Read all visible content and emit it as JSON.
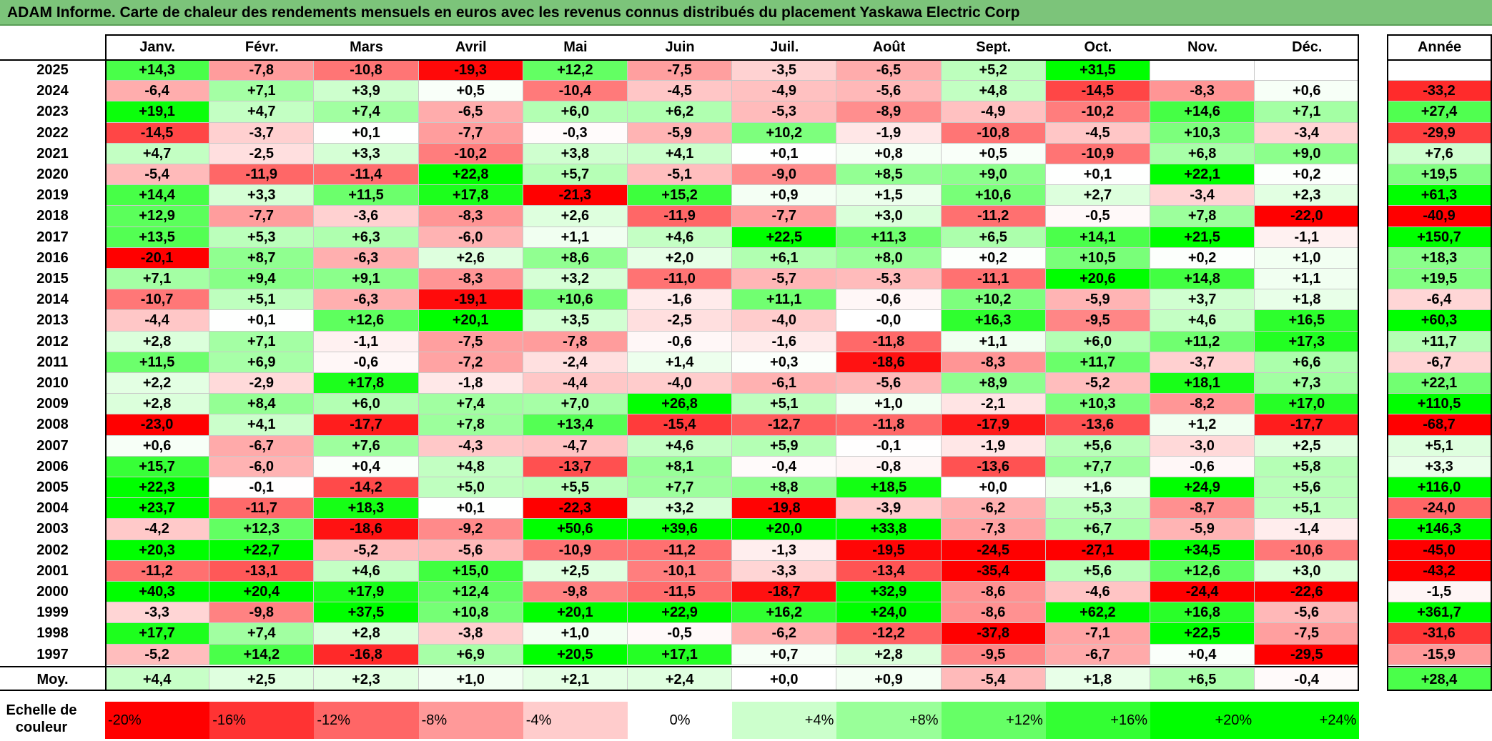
{
  "title": "ADAM Informe. Carte de chaleur des rendements mensuels en euros avec les revenus connus distribués du placement Yaskawa Electric Corp",
  "chart_data": {
    "type": "heatmap",
    "months": [
      "Janv.",
      "Févr.",
      "Mars",
      "Avril",
      "Mai",
      "Juin",
      "Juil.",
      "Août",
      "Sept.",
      "Oct.",
      "Nov.",
      "Déc."
    ],
    "year_header": "Année",
    "rows": [
      {
        "year": "2025",
        "values": [
          "+14,3",
          "-7,8",
          "-10,8",
          "-19,3",
          "+12,2",
          "-7,5",
          "-3,5",
          "-6,5",
          "+5,2",
          "+31,5",
          "",
          ""
        ],
        "annual": ""
      },
      {
        "year": "2024",
        "values": [
          "-6,4",
          "+7,1",
          "+3,9",
          "+0,5",
          "-10,4",
          "-4,5",
          "-4,9",
          "-5,6",
          "+4,8",
          "-14,5",
          "-8,3",
          "+0,6"
        ],
        "annual": "-33,2"
      },
      {
        "year": "2023",
        "values": [
          "+19,1",
          "+4,7",
          "+7,4",
          "-6,5",
          "+6,0",
          "+6,2",
          "-5,3",
          "-8,9",
          "-4,9",
          "-10,2",
          "+14,6",
          "+7,1"
        ],
        "annual": "+27,4"
      },
      {
        "year": "2022",
        "values": [
          "-14,5",
          "-3,7",
          "+0,1",
          "-7,7",
          "-0,3",
          "-5,9",
          "+10,2",
          "-1,9",
          "-10,8",
          "-4,5",
          "+10,3",
          "-3,4"
        ],
        "annual": "-29,9"
      },
      {
        "year": "2021",
        "values": [
          "+4,7",
          "-2,5",
          "+3,3",
          "-10,2",
          "+3,8",
          "+4,1",
          "+0,1",
          "+0,8",
          "+0,5",
          "-10,9",
          "+6,8",
          "+9,0"
        ],
        "annual": "+7,6"
      },
      {
        "year": "2020",
        "values": [
          "-5,4",
          "-11,9",
          "-11,4",
          "+22,8",
          "+5,7",
          "-5,1",
          "-9,0",
          "+8,5",
          "+9,0",
          "+0,1",
          "+22,1",
          "+0,2"
        ],
        "annual": "+19,5"
      },
      {
        "year": "2019",
        "values": [
          "+14,4",
          "+3,3",
          "+11,5",
          "+17,8",
          "-21,3",
          "+15,2",
          "+0,9",
          "+1,5",
          "+10,6",
          "+2,7",
          "-3,4",
          "+2,3"
        ],
        "annual": "+61,3"
      },
      {
        "year": "2018",
        "values": [
          "+12,9",
          "-7,7",
          "-3,6",
          "-8,3",
          "+2,6",
          "-11,9",
          "-7,7",
          "+3,0",
          "-11,2",
          "-0,5",
          "+7,8",
          "-22,0"
        ],
        "annual": "-40,9"
      },
      {
        "year": "2017",
        "values": [
          "+13,5",
          "+5,3",
          "+6,3",
          "-6,0",
          "+1,1",
          "+4,6",
          "+22,5",
          "+11,3",
          "+6,5",
          "+14,1",
          "+21,5",
          "-1,1"
        ],
        "annual": "+150,7"
      },
      {
        "year": "2016",
        "values": [
          "-20,1",
          "+8,7",
          "-6,3",
          "+2,6",
          "+8,6",
          "+2,0",
          "+6,1",
          "+8,0",
          "+0,2",
          "+10,5",
          "+0,2",
          "+1,0"
        ],
        "annual": "+18,3"
      },
      {
        "year": "2015",
        "values": [
          "+7,1",
          "+9,4",
          "+9,1",
          "-8,3",
          "+3,2",
          "-11,0",
          "-5,7",
          "-5,3",
          "-11,1",
          "+20,6",
          "+14,8",
          "+1,1"
        ],
        "annual": "+19,5"
      },
      {
        "year": "2014",
        "values": [
          "-10,7",
          "+5,1",
          "-6,3",
          "-19,1",
          "+10,6",
          "-1,6",
          "+11,1",
          "-0,6",
          "+10,2",
          "-5,9",
          "+3,7",
          "+1,8"
        ],
        "annual": "-6,4"
      },
      {
        "year": "2013",
        "values": [
          "-4,4",
          "+0,1",
          "+12,6",
          "+20,1",
          "+3,5",
          "-2,5",
          "-4,0",
          "-0,0",
          "+16,3",
          "-9,5",
          "+4,6",
          "+16,5"
        ],
        "annual": "+60,3"
      },
      {
        "year": "2012",
        "values": [
          "+2,8",
          "+7,1",
          "-1,1",
          "-7,5",
          "-7,8",
          "-0,6",
          "-1,6",
          "-11,8",
          "+1,1",
          "+6,0",
          "+11,2",
          "+17,3"
        ],
        "annual": "+11,7"
      },
      {
        "year": "2011",
        "values": [
          "+11,5",
          "+6,9",
          "-0,6",
          "-7,2",
          "-2,4",
          "+1,4",
          "+0,3",
          "-18,6",
          "-8,3",
          "+11,7",
          "-3,7",
          "+6,6"
        ],
        "annual": "-6,7"
      },
      {
        "year": "2010",
        "values": [
          "+2,2",
          "-2,9",
          "+17,8",
          "-1,8",
          "-4,4",
          "-4,0",
          "-6,1",
          "-5,6",
          "+8,9",
          "-5,2",
          "+18,1",
          "+7,3"
        ],
        "annual": "+22,1"
      },
      {
        "year": "2009",
        "values": [
          "+2,8",
          "+8,4",
          "+6,0",
          "+7,4",
          "+7,0",
          "+26,8",
          "+5,1",
          "+1,0",
          "-2,1",
          "+10,3",
          "-8,2",
          "+17,0"
        ],
        "annual": "+110,5"
      },
      {
        "year": "2008",
        "values": [
          "-23,0",
          "+4,1",
          "-17,7",
          "+7,8",
          "+13,4",
          "-15,4",
          "-12,7",
          "-11,8",
          "-17,9",
          "-13,6",
          "+1,2",
          "-17,7"
        ],
        "annual": "-68,7"
      },
      {
        "year": "2007",
        "values": [
          "+0,6",
          "-6,7",
          "+7,6",
          "-4,3",
          "-4,7",
          "+4,6",
          "+5,9",
          "-0,1",
          "-1,9",
          "+5,6",
          "-3,0",
          "+2,5"
        ],
        "annual": "+5,1"
      },
      {
        "year": "2006",
        "values": [
          "+15,7",
          "-6,0",
          "+0,4",
          "+4,8",
          "-13,7",
          "+8,1",
          "-0,4",
          "-0,8",
          "-13,6",
          "+7,7",
          "-0,6",
          "+5,8"
        ],
        "annual": "+3,3"
      },
      {
        "year": "2005",
        "values": [
          "+22,3",
          "-0,1",
          "-14,2",
          "+5,0",
          "+5,5",
          "+7,7",
          "+8,8",
          "+18,5",
          "+0,0",
          "+1,6",
          "+24,9",
          "+5,6"
        ],
        "annual": "+116,0"
      },
      {
        "year": "2004",
        "values": [
          "+23,7",
          "-11,7",
          "+18,3",
          "+0,1",
          "-22,3",
          "+3,2",
          "-19,8",
          "-3,9",
          "-6,2",
          "+5,3",
          "-8,7",
          "+5,1"
        ],
        "annual": "-24,0"
      },
      {
        "year": "2003",
        "values": [
          "-4,2",
          "+12,3",
          "-18,6",
          "-9,2",
          "+50,6",
          "+39,6",
          "+20,0",
          "+33,8",
          "-7,3",
          "+6,7",
          "-5,9",
          "-1,4"
        ],
        "annual": "+146,3"
      },
      {
        "year": "2002",
        "values": [
          "+20,3",
          "+22,7",
          "-5,2",
          "-5,6",
          "-10,9",
          "-11,2",
          "-1,3",
          "-19,5",
          "-24,5",
          "-27,1",
          "+34,5",
          "-10,6"
        ],
        "annual": "-45,0"
      },
      {
        "year": "2001",
        "values": [
          "-11,2",
          "-13,1",
          "+4,6",
          "+15,0",
          "+2,5",
          "-10,1",
          "-3,3",
          "-13,4",
          "-35,4",
          "+5,6",
          "+12,6",
          "+3,0"
        ],
        "annual": "-43,2"
      },
      {
        "year": "2000",
        "values": [
          "+40,3",
          "+20,4",
          "+17,9",
          "+12,4",
          "-9,8",
          "-11,5",
          "-18,7",
          "+32,9",
          "-8,6",
          "-4,6",
          "-24,4",
          "-22,6"
        ],
        "annual": "-1,5"
      },
      {
        "year": "1999",
        "values": [
          "-3,3",
          "-9,8",
          "+37,5",
          "+10,8",
          "+20,1",
          "+22,9",
          "+16,2",
          "+24,0",
          "-8,6",
          "+62,2",
          "+16,8",
          "-5,6"
        ],
        "annual": "+361,7"
      },
      {
        "year": "1998",
        "values": [
          "+17,7",
          "+7,4",
          "+2,8",
          "-3,8",
          "+1,0",
          "-0,5",
          "-6,2",
          "-12,2",
          "-37,8",
          "-7,1",
          "+22,5",
          "-7,5"
        ],
        "annual": "-31,6"
      },
      {
        "year": "1997",
        "values": [
          "-5,2",
          "+14,2",
          "-16,8",
          "+6,9",
          "+20,5",
          "+17,1",
          "+0,7",
          "+2,8",
          "-9,5",
          "-6,7",
          "+0,4",
          "-29,5"
        ],
        "annual": "-15,9"
      }
    ],
    "average": {
      "label": "Moy.",
      "values": [
        "+4,4",
        "+2,5",
        "+2,3",
        "+1,0",
        "+2,1",
        "+2,4",
        "+0,0",
        "+0,9",
        "-5,4",
        "+1,8",
        "+6,5",
        "-0,4"
      ],
      "annual": "+28,4"
    },
    "scale": {
      "label": "Echelle de couleur",
      "stops": [
        {
          "label": "-20%",
          "value": -20
        },
        {
          "label": "-16%",
          "value": -16
        },
        {
          "label": "-12%",
          "value": -12
        },
        {
          "label": "-8%",
          "value": -8
        },
        {
          "label": "-4%",
          "value": -4
        },
        {
          "label": "0%",
          "value": 0
        },
        {
          "label": "+4%",
          "value": 4
        },
        {
          "label": "+8%",
          "value": 8
        },
        {
          "label": "+12%",
          "value": 12
        },
        {
          "label": "+16%",
          "value": 16
        },
        {
          "label": "+20%",
          "value": 20
        },
        {
          "label": "+24%",
          "value": 24
        }
      ]
    },
    "colors": {
      "negative": "#ff0000",
      "neutral": "#ffffff",
      "positive": "#00ff00",
      "title_bar": "#7cc47a"
    }
  }
}
